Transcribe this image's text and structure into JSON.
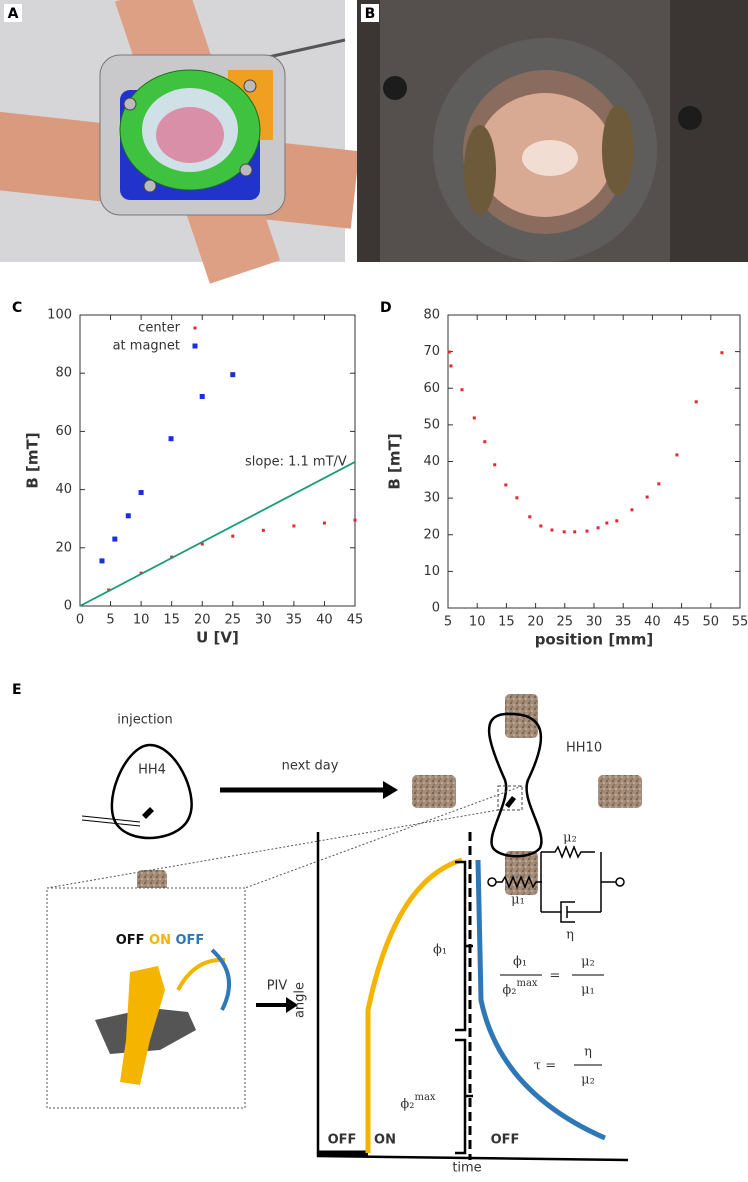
{
  "panel_labels": [
    "A",
    "B"
  ],
  "chart_data": [
    {
      "type": "scatter",
      "label": "C",
      "x_label": "U [V]",
      "y_label": "B [mT]",
      "xlim": [
        0,
        45
      ],
      "ylim": [
        0,
        100
      ],
      "xticks": [
        0,
        5,
        10,
        15,
        20,
        25,
        30,
        35,
        40,
        45
      ],
      "yticks": [
        0,
        20,
        40,
        60,
        80,
        100
      ],
      "legend": "top-left",
      "annotation": "slope: 1.1 mT/V",
      "series": [
        {
          "name": "center",
          "color": "#e8262a",
          "x": [
            4.7,
            10,
            15,
            20,
            25,
            30,
            35,
            40,
            45
          ],
          "values": [
            5.5,
            11.3,
            16.8,
            21.3,
            24,
            26,
            27.5,
            28.5,
            29.5
          ]
        },
        {
          "name": "at magnet",
          "color": "#1a2ee0",
          "x": [
            3.6,
            5.7,
            7.9,
            10,
            14.9,
            20,
            25
          ],
          "values": [
            15.5,
            23,
            31,
            39,
            57.5,
            72,
            79.5
          ]
        },
        {
          "type": "line",
          "color": "#1a9a7a",
          "x": [
            0,
            45
          ],
          "values": [
            0,
            49.5
          ]
        }
      ]
    },
    {
      "type": "scatter",
      "label": "D",
      "x_label": "position [mm]",
      "y_label": "B [mT]",
      "xlim": [
        5,
        55
      ],
      "ylim": [
        0,
        80
      ],
      "xticks": [
        5,
        10,
        15,
        20,
        25,
        30,
        35,
        40,
        45,
        50,
        55
      ],
      "yticks": [
        0,
        10,
        20,
        30,
        40,
        50,
        60,
        70,
        80
      ],
      "series": [
        {
          "color": "#e8262a",
          "x": [
            5.2,
            5.5,
            7.4,
            9.5,
            11.3,
            13.0,
            14.9,
            16.8,
            19.0,
            20.9,
            22.8,
            24.9,
            26.7,
            28.8,
            30.7,
            32.2,
            33.9,
            36.5,
            39.1,
            41.1,
            44.2,
            47.5,
            51.9
          ],
          "values": [
            69.9,
            66.1,
            59.6,
            51.9,
            45.4,
            39.1,
            33.6,
            30.1,
            24.9,
            22.4,
            21.3,
            20.8,
            20.8,
            21.0,
            21.9,
            23.2,
            23.8,
            26.8,
            30.3,
            33.9,
            41.8,
            56.3,
            69.7
          ]
        }
      ]
    }
  ],
  "diagram": {
    "label": "E",
    "injection": "injection",
    "hh4": "HH4",
    "next_day": "next day",
    "hh10": "HH10",
    "legend": [
      "OFF",
      "ON",
      "OFF"
    ],
    "piv": "PIV",
    "y_label": "angle",
    "x_label": "time",
    "phases": [
      "OFF",
      "ON",
      "OFF"
    ],
    "phi1": "ϕ₁",
    "phi2": "ϕ₂",
    "max": "max",
    "model": {
      "mu1": "μ₁",
      "mu2": "μ₂",
      "eta": "η"
    },
    "formula1": {
      "num_left": "ϕ₁",
      "den_left": "ϕ₂",
      "den_left_sup": "max",
      "equals": "=",
      "num_right": "μ₂",
      "den_right": "μ₁"
    },
    "formula2": {
      "lhs": "τ =",
      "num": "η",
      "den": "μ₂"
    }
  }
}
